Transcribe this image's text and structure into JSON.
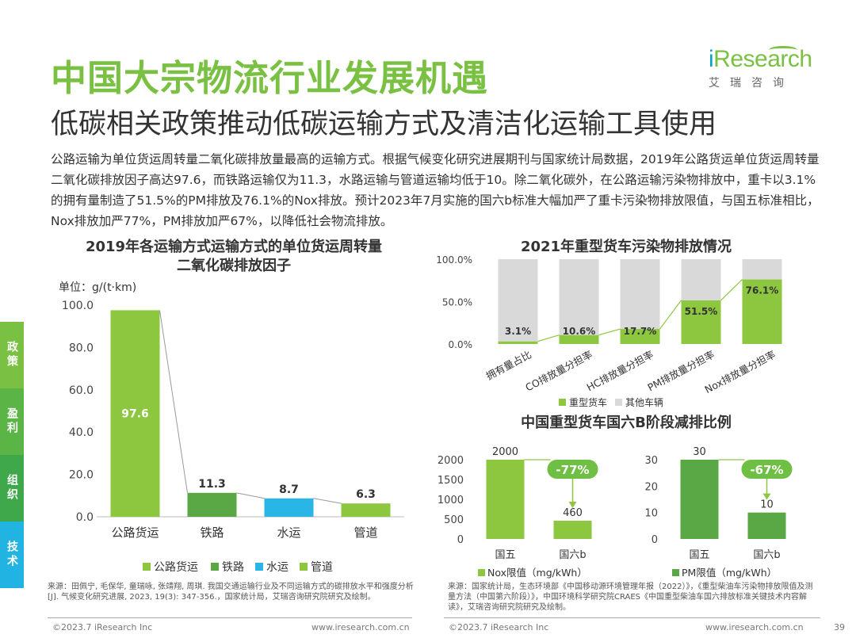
{
  "header": {
    "title": "中国大宗物流行业发展机遇",
    "subtitle": "低碳相关政策推动低碳运输方式及清洁化运输工具使用",
    "logo_text_i": "i",
    "logo_text_rest": "Research",
    "logo_cn": "艾瑞咨询"
  },
  "intro": "公路运输为单位货运周转量二氧化碳排放量最高的运输方式。根据气候变化研究进展期刊与国家统计局数据，2019年公路货运单位货运周转量二氧化碳排放因子高达97.6，而铁路运输仅为11.3，水路运输与管道运输均低于10。除二氧化碳外，在公路运输污染物排放中，重卡以3.1%的拥有量制造了51.5%的PM排放及76.1%的Nox排放。预计2023年7月实施的国六b标准大幅加严了重卡污染物排放限值，与国五标准相比，Nox排放加严77%，PM排放加严67%，以降低社会物流排放。",
  "side_tabs": [
    {
      "label": "政策",
      "color": "#7ac143"
    },
    {
      "label": "盈利",
      "color": "#5bb546"
    },
    {
      "label": "组织",
      "color": "#3ea84a"
    },
    {
      "label": "技术",
      "color": "#21b4e3"
    }
  ],
  "colors": {
    "green": "#8dc63f",
    "darkgreen": "#5aa845",
    "blue": "#29b6e6",
    "gray": "#d9d9d9",
    "accent": "#7ac143"
  },
  "chart_data": [
    {
      "type": "bar",
      "title": "2019年各运输方式运输方式的单位货运周转量二氧化碳排放因子",
      "title_line1": "2019年各运输方式运输方式的单位货运周转量",
      "title_line2": "二氧化碳排放因子",
      "unit": "单位：g/(t·km)",
      "categories": [
        "公路货运",
        "铁路",
        "水运",
        "管道"
      ],
      "values": [
        97.6,
        11.3,
        8.7,
        6.3
      ],
      "value_labels": [
        "97.6",
        "11.3",
        "8.7",
        "6.3"
      ],
      "colors": [
        "#8dc63f",
        "#5aa845",
        "#29b6e6",
        "#8dc63f"
      ],
      "ylim": [
        0,
        100
      ],
      "yticks": [
        "0.0",
        "20.0",
        "40.0",
        "60.0",
        "80.0",
        "100.0"
      ],
      "legend": [
        "公路货运",
        "铁路",
        "水运",
        "管道"
      ]
    },
    {
      "type": "bar",
      "stacked": true,
      "title": "2021年重型货车污染物排放情况",
      "categories": [
        "拥有量占比",
        "CO排放量分担率",
        "HC排放量分担率",
        "PM排放量分担率",
        "Nox排放量分担率"
      ],
      "series": [
        {
          "name": "重型货车",
          "values": [
            3.1,
            10.6,
            17.7,
            51.5,
            76.1
          ],
          "color": "#8dc63f"
        },
        {
          "name": "其他车辆",
          "values": [
            96.9,
            89.4,
            82.3,
            48.5,
            23.9
          ],
          "color": "#d9d9d9"
        }
      ],
      "value_labels": [
        "3.1%",
        "10.6%",
        "17.7%",
        "51.5%",
        "76.1%"
      ],
      "ylim": [
        0,
        100
      ],
      "yticks": [
        "0.0%",
        "50.0%",
        "100.0%"
      ]
    },
    {
      "type": "bar",
      "title": "中国重型货车国六B阶段减排比例",
      "categories": [
        "国五",
        "国六b"
      ],
      "values": [
        2000,
        460
      ],
      "value_labels": [
        "2000",
        "460"
      ],
      "ylim": [
        0,
        2000
      ],
      "yticks": [
        "0",
        "500",
        "1000",
        "1500",
        "2000"
      ],
      "change": "-77%",
      "legend": "Nox限值（mg/kWh）",
      "color": "#8dc63f"
    },
    {
      "type": "bar",
      "categories": [
        "国五",
        "国六b"
      ],
      "values": [
        30,
        10
      ],
      "value_labels": [
        "30",
        "10"
      ],
      "ylim": [
        0,
        30
      ],
      "yticks": [
        "0",
        "10",
        "20",
        "30"
      ],
      "change": "-67%",
      "legend": "PM限值（mg/kWh）",
      "color": "#5aa845"
    }
  ],
  "sources": {
    "left": "来源：田佩宁, 毛保华, 童瑞咏, 张靖翔, 周琪. 我国交通运输行业及不同运输方式的碳排放水平和强度分析[J]. 气候变化研究进展, 2023, 19(3): 347-356.，国家统计局，艾瑞咨询研究院研究及绘制。",
    "right": "来源：国家统计局，生态环境部《中国移动源环境管理年报（2022）》，《重型柴油车污染物排放限值及测量方法（中国第六阶段）》，中国环境科学研究院CRAES《中国重型柴油车国六排放标准关键技术内容解读》，艾瑞咨询研究院研究及绘制。"
  },
  "footer": {
    "copyright_left": "©2023.7 iResearch Inc",
    "url_left": "www.iresearch.com.cn",
    "copyright_right": "©2023.7 iResearch Inc",
    "url_right": "www.iresearch.com.cn",
    "page": "39"
  }
}
